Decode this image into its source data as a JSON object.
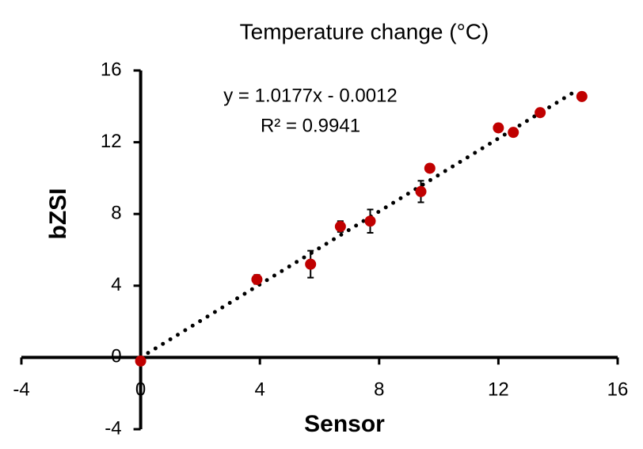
{
  "chart_data": {
    "type": "scatter",
    "title": "Temperature change (°C)",
    "x_label": "Sensor",
    "y_label": "bZSI",
    "series": [
      {
        "name": "bZSI",
        "color": "#c00000",
        "x": [
          0,
          3.9,
          5.7,
          6.7,
          7.7,
          9.4,
          9.7,
          12.0,
          12.5,
          13.4,
          14.8
        ],
        "values": [
          -0.2,
          4.35,
          5.2,
          7.3,
          7.6,
          9.25,
          10.55,
          12.8,
          12.55,
          13.65,
          14.55
        ],
        "errors": [
          0.1,
          0.25,
          0.75,
          0.3,
          0.65,
          0.6,
          0.2,
          0.15,
          0.2,
          0.15,
          0.1
        ]
      }
    ],
    "trendline": {
      "type": "linear",
      "slope": 1.0177,
      "intercept": -0.0012,
      "color": "#000000",
      "style": "dotted",
      "equation": "y = 1.0177x - 0.0012",
      "r_squared": "R² = 0.9941"
    },
    "xlim": [
      -4,
      16
    ],
    "xticks": [
      -4,
      0,
      4,
      8,
      12,
      16
    ],
    "ylim": [
      -4,
      16
    ],
    "yticks": [
      -4,
      0,
      4,
      8,
      12,
      16
    ],
    "grid": false
  }
}
